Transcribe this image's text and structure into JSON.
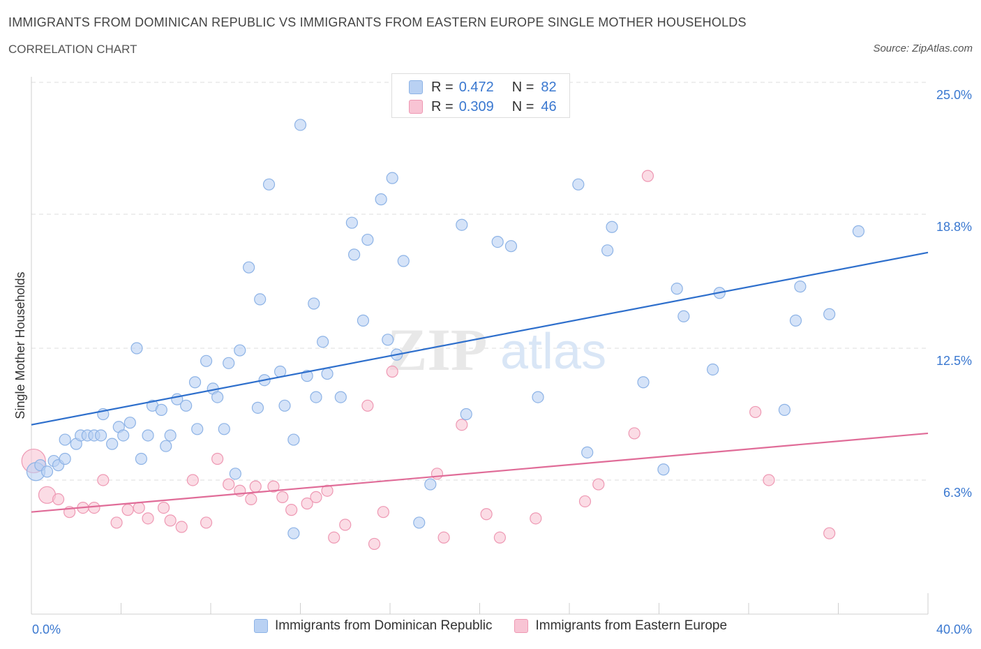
{
  "title": "IMMIGRANTS FROM DOMINICAN REPUBLIC VS IMMIGRANTS FROM EASTERN EUROPE SINGLE MOTHER HOUSEHOLDS",
  "subtitle": "CORRELATION CHART",
  "source": "Source: ZipAtlas.com",
  "watermark": {
    "zip": "ZIP",
    "atlas": "atlas"
  },
  "legend": {
    "r_label": "R =",
    "n_label": "N =",
    "rows": [
      {
        "r": "0.472",
        "n": "82"
      },
      {
        "r": "0.309",
        "n": "46"
      }
    ]
  },
  "chart_data": {
    "type": "scatter",
    "ylabel": "Single Mother Households",
    "x_tick_labels": [
      "0.0%",
      "40.0%"
    ],
    "y_tick_labels": [
      "6.3%",
      "12.5%",
      "18.8%",
      "25.0%"
    ],
    "xlim": [
      0,
      40
    ],
    "ylim": [
      0,
      25
    ],
    "y_ticks": [
      6.3,
      12.5,
      18.8,
      25.0
    ],
    "grid": true,
    "legend_position": "top-center",
    "colors": {
      "blue_fill": "#b9d1f3",
      "blue_stroke": "#8db3e6",
      "blue_line": "#2e6fcc",
      "pink_fill": "#f8c4d4",
      "pink_stroke": "#ee98b3",
      "pink_line": "#e06c98",
      "tick_label": "#3a78d0"
    },
    "series": [
      {
        "name": "Immigrants from Dominican Republic",
        "r": 0.472,
        "n": 82,
        "trend": [
          [
            0,
            8.9
          ],
          [
            40,
            17.0
          ]
        ],
        "points": [
          [
            0.2,
            6.7
          ],
          [
            0.4,
            7.0
          ],
          [
            0.7,
            6.7
          ],
          [
            1.0,
            7.2
          ],
          [
            1.2,
            7.0
          ],
          [
            1.5,
            7.3
          ],
          [
            1.5,
            8.2
          ],
          [
            2.0,
            8.0
          ],
          [
            2.2,
            8.4
          ],
          [
            2.5,
            8.4
          ],
          [
            2.8,
            8.4
          ],
          [
            3.1,
            8.4
          ],
          [
            3.2,
            9.4
          ],
          [
            3.6,
            8.0
          ],
          [
            3.9,
            8.8
          ],
          [
            4.1,
            8.4
          ],
          [
            4.4,
            9.0
          ],
          [
            4.7,
            12.5
          ],
          [
            4.9,
            7.3
          ],
          [
            5.2,
            8.4
          ],
          [
            5.4,
            9.8
          ],
          [
            5.8,
            9.6
          ],
          [
            6.0,
            7.9
          ],
          [
            6.2,
            8.4
          ],
          [
            6.5,
            10.1
          ],
          [
            6.9,
            9.8
          ],
          [
            7.4,
            8.7
          ],
          [
            7.3,
            10.9
          ],
          [
            7.8,
            11.9
          ],
          [
            8.1,
            10.6
          ],
          [
            8.3,
            10.2
          ],
          [
            8.6,
            8.7
          ],
          [
            8.8,
            11.8
          ],
          [
            9.1,
            6.6
          ],
          [
            9.3,
            12.4
          ],
          [
            9.7,
            16.3
          ],
          [
            10.1,
            9.7
          ],
          [
            10.2,
            14.8
          ],
          [
            10.4,
            11.0
          ],
          [
            10.6,
            20.2
          ],
          [
            11.1,
            11.4
          ],
          [
            11.3,
            9.8
          ],
          [
            11.7,
            3.8
          ],
          [
            11.7,
            8.2
          ],
          [
            12.3,
            11.2
          ],
          [
            12.6,
            14.6
          ],
          [
            12.0,
            23.0
          ],
          [
            12.7,
            10.2
          ],
          [
            13.0,
            12.8
          ],
          [
            13.2,
            11.3
          ],
          [
            13.8,
            10.2
          ],
          [
            14.3,
            18.4
          ],
          [
            14.4,
            16.9
          ],
          [
            14.8,
            13.8
          ],
          [
            15.0,
            17.6
          ],
          [
            15.6,
            19.5
          ],
          [
            15.9,
            12.9
          ],
          [
            16.1,
            20.5
          ],
          [
            16.3,
            12.2
          ],
          [
            16.6,
            16.6
          ],
          [
            17.3,
            4.3
          ],
          [
            17.8,
            6.1
          ],
          [
            19.2,
            18.3
          ],
          [
            19.4,
            9.4
          ],
          [
            20.8,
            17.5
          ],
          [
            21.4,
            17.3
          ],
          [
            22.6,
            10.2
          ],
          [
            24.4,
            20.2
          ],
          [
            24.8,
            7.6
          ],
          [
            25.7,
            17.1
          ],
          [
            25.9,
            18.2
          ],
          [
            27.3,
            10.9
          ],
          [
            28.2,
            6.8
          ],
          [
            28.8,
            15.3
          ],
          [
            29.1,
            14.0
          ],
          [
            30.4,
            11.5
          ],
          [
            30.7,
            15.1
          ],
          [
            33.6,
            9.6
          ],
          [
            34.1,
            13.8
          ],
          [
            34.3,
            15.4
          ],
          [
            35.6,
            14.1
          ],
          [
            36.9,
            18.0
          ]
        ]
      },
      {
        "name": "Immigrants from Eastern Europe",
        "r": 0.309,
        "n": 46,
        "trend": [
          [
            0,
            4.8
          ],
          [
            40,
            8.5
          ]
        ],
        "points": [
          [
            0.1,
            7.2
          ],
          [
            0.7,
            5.6
          ],
          [
            1.2,
            5.4
          ],
          [
            1.7,
            4.8
          ],
          [
            2.3,
            5.0
          ],
          [
            2.8,
            5.0
          ],
          [
            3.2,
            6.3
          ],
          [
            3.8,
            4.3
          ],
          [
            4.3,
            4.9
          ],
          [
            4.8,
            5.0
          ],
          [
            5.2,
            4.5
          ],
          [
            5.9,
            5.0
          ],
          [
            6.2,
            4.4
          ],
          [
            6.7,
            4.1
          ],
          [
            7.2,
            6.3
          ],
          [
            7.8,
            4.3
          ],
          [
            8.3,
            7.3
          ],
          [
            8.8,
            6.1
          ],
          [
            9.3,
            5.8
          ],
          [
            9.8,
            5.4
          ],
          [
            10.0,
            6.0
          ],
          [
            10.8,
            6.0
          ],
          [
            11.2,
            5.5
          ],
          [
            11.6,
            4.9
          ],
          [
            12.3,
            5.2
          ],
          [
            12.7,
            5.5
          ],
          [
            13.2,
            5.8
          ],
          [
            13.5,
            3.6
          ],
          [
            14.0,
            4.2
          ],
          [
            15.3,
            3.3
          ],
          [
            15.7,
            4.8
          ],
          [
            16.1,
            11.4
          ],
          [
            15.0,
            9.8
          ],
          [
            18.1,
            6.6
          ],
          [
            18.4,
            3.6
          ],
          [
            19.2,
            8.9
          ],
          [
            20.3,
            4.7
          ],
          [
            20.9,
            3.6
          ],
          [
            22.5,
            4.5
          ],
          [
            24.7,
            5.3
          ],
          [
            25.3,
            6.1
          ],
          [
            26.9,
            8.5
          ],
          [
            27.5,
            20.6
          ],
          [
            32.3,
            9.5
          ],
          [
            32.9,
            6.3
          ],
          [
            35.6,
            3.8
          ]
        ]
      }
    ]
  }
}
